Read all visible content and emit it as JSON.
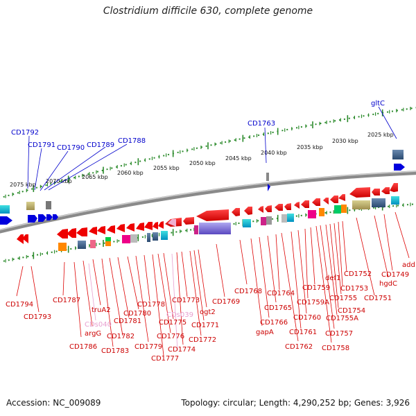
{
  "title": "Clostridium difficile 630, complete genome",
  "footer": {
    "accession": "Accession: NC_009089",
    "topology": "Topology: circular; Length: 4,290,252 bp; Genes: 3,926"
  },
  "colors": {
    "forward_gene": "#0000dd",
    "reverse_gene": "#ee0000",
    "faded_gene": "#e8a0d0",
    "ruler_tick": "#2a8a2a",
    "backbone": "#8a8a8a"
  },
  "ruler_labels": [
    "2025 kbp",
    "2030 kbp",
    "2035 kbp",
    "2040 kbp",
    "2045 kbp",
    "2050 kbp",
    "2055 kbp",
    "2060 kbp",
    "2065 kbp",
    "2070 kbp",
    "2075 kbp"
  ],
  "forward_labels": [
    "gltC",
    "CD1763",
    "CD1788",
    "CD1789",
    "CD1790",
    "CD1791",
    "CD1792"
  ],
  "reverse_labels": [
    "add",
    "CD1749",
    "hgdC",
    "CD1751",
    "CD1752",
    "CD1753",
    "def1",
    "CD1755",
    "CD1754",
    "CD1755A",
    "CD1757",
    "CD1758",
    "CD1759",
    "CD1759A",
    "CD1760",
    "CD1761",
    "CD1762",
    "CD1764",
    "CD1765",
    "CD1766",
    "gapA",
    "CD1768",
    "CD1769",
    "ogt2",
    "CD1771",
    "CD1772",
    "CD1773",
    "CDs039",
    "CD1774",
    "CD1775",
    "CD1776",
    "CD1777",
    "CD1778",
    "CD1779",
    "CD1780",
    "CD1781",
    "CD1782",
    "CD1783",
    "truA2",
    "argG",
    "CDs040",
    "CD1786",
    "CD1787",
    "CD1793",
    "CD1794"
  ]
}
